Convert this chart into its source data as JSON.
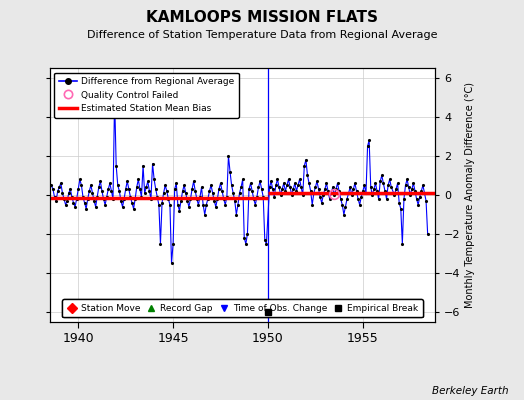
{
  "title": "KAMLOOPS MISSION FLATS",
  "subtitle": "Difference of Station Temperature Data from Regional Average",
  "ylabel": "Monthly Temperature Anomaly Difference (°C)",
  "ylim": [
    -6.5,
    6.5
  ],
  "xlim": [
    1938.5,
    1958.8
  ],
  "background_color": "#e8e8e8",
  "plot_bg_color": "#ffffff",
  "grid_color": "#cccccc",
  "bias_line_before_1950": -0.15,
  "bias_line_after_1950": 0.1,
  "vertical_line_x": 1950.0,
  "empirical_break_x": 1950.0,
  "empirical_break_y": -6.0,
  "qc_failed_x": 1953.5,
  "qc_failed_y": 0.05,
  "time_series": [
    [
      1938.583,
      0.5
    ],
    [
      1938.667,
      0.3
    ],
    [
      1938.75,
      -0.1
    ],
    [
      1938.833,
      -0.3
    ],
    [
      1938.917,
      0.2
    ],
    [
      1939.0,
      0.4
    ],
    [
      1939.083,
      0.6
    ],
    [
      1939.167,
      0.1
    ],
    [
      1939.25,
      -0.2
    ],
    [
      1939.333,
      -0.5
    ],
    [
      1939.417,
      -0.3
    ],
    [
      1939.5,
      0.1
    ],
    [
      1939.583,
      0.3
    ],
    [
      1939.667,
      -0.1
    ],
    [
      1939.75,
      -0.4
    ],
    [
      1939.833,
      -0.6
    ],
    [
      1939.917,
      -0.2
    ],
    [
      1940.0,
      0.3
    ],
    [
      1940.083,
      0.8
    ],
    [
      1940.167,
      0.5
    ],
    [
      1940.25,
      -0.1
    ],
    [
      1940.333,
      -0.4
    ],
    [
      1940.417,
      -0.7
    ],
    [
      1940.5,
      -0.2
    ],
    [
      1940.583,
      0.2
    ],
    [
      1940.667,
      0.5
    ],
    [
      1940.75,
      0.1
    ],
    [
      1940.833,
      -0.3
    ],
    [
      1940.917,
      -0.6
    ],
    [
      1941.0,
      -0.1
    ],
    [
      1941.083,
      0.4
    ],
    [
      1941.167,
      0.7
    ],
    [
      1941.25,
      0.2
    ],
    [
      1941.333,
      -0.2
    ],
    [
      1941.417,
      -0.5
    ],
    [
      1941.5,
      -0.1
    ],
    [
      1941.583,
      0.3
    ],
    [
      1941.667,
      0.6
    ],
    [
      1941.75,
      0.2
    ],
    [
      1941.833,
      -0.2
    ],
    [
      1941.917,
      5.0
    ],
    [
      1942.0,
      1.5
    ],
    [
      1942.083,
      0.5
    ],
    [
      1942.167,
      0.2
    ],
    [
      1942.25,
      -0.3
    ],
    [
      1942.333,
      -0.6
    ],
    [
      1942.417,
      -0.2
    ],
    [
      1942.5,
      0.3
    ],
    [
      1942.583,
      0.7
    ],
    [
      1942.667,
      0.3
    ],
    [
      1942.75,
      -0.1
    ],
    [
      1942.833,
      -0.4
    ],
    [
      1942.917,
      -0.7
    ],
    [
      1943.0,
      -0.2
    ],
    [
      1943.083,
      0.4
    ],
    [
      1943.167,
      0.8
    ],
    [
      1943.25,
      0.3
    ],
    [
      1943.333,
      -0.1
    ],
    [
      1943.417,
      1.5
    ],
    [
      1943.5,
      0.1
    ],
    [
      1943.583,
      0.4
    ],
    [
      1943.667,
      0.7
    ],
    [
      1943.75,
      0.2
    ],
    [
      1943.833,
      -0.2
    ],
    [
      1943.917,
      1.6
    ],
    [
      1944.0,
      0.8
    ],
    [
      1944.083,
      0.3
    ],
    [
      1944.167,
      -0.1
    ],
    [
      1944.25,
      -0.5
    ],
    [
      1944.333,
      -2.5
    ],
    [
      1944.417,
      -0.4
    ],
    [
      1944.5,
      0.1
    ],
    [
      1944.583,
      0.5
    ],
    [
      1944.667,
      0.2
    ],
    [
      1944.75,
      -0.2
    ],
    [
      1944.833,
      -0.5
    ],
    [
      1944.917,
      -3.5
    ],
    [
      1945.0,
      -2.5
    ],
    [
      1945.083,
      0.3
    ],
    [
      1945.167,
      0.6
    ],
    [
      1945.25,
      -0.5
    ],
    [
      1945.333,
      -0.8
    ],
    [
      1945.417,
      -0.3
    ],
    [
      1945.5,
      0.2
    ],
    [
      1945.583,
      0.5
    ],
    [
      1945.667,
      0.1
    ],
    [
      1945.75,
      -0.3
    ],
    [
      1945.833,
      -0.6
    ],
    [
      1945.917,
      -0.2
    ],
    [
      1946.0,
      0.3
    ],
    [
      1946.083,
      0.7
    ],
    [
      1946.167,
      0.2
    ],
    [
      1946.25,
      -0.2
    ],
    [
      1946.333,
      -0.5
    ],
    [
      1946.417,
      -0.1
    ],
    [
      1946.5,
      0.4
    ],
    [
      1946.583,
      -0.5
    ],
    [
      1946.667,
      -1.0
    ],
    [
      1946.75,
      -0.5
    ],
    [
      1946.833,
      -0.2
    ],
    [
      1946.917,
      0.2
    ],
    [
      1947.0,
      0.5
    ],
    [
      1947.083,
      0.1
    ],
    [
      1947.167,
      -0.3
    ],
    [
      1947.25,
      -0.6
    ],
    [
      1947.333,
      -0.2
    ],
    [
      1947.417,
      0.3
    ],
    [
      1947.5,
      0.6
    ],
    [
      1947.583,
      0.2
    ],
    [
      1947.667,
      -0.2
    ],
    [
      1947.75,
      -0.5
    ],
    [
      1947.833,
      -0.1
    ],
    [
      1947.917,
      2.0
    ],
    [
      1948.0,
      1.2
    ],
    [
      1948.083,
      0.5
    ],
    [
      1948.167,
      0.1
    ],
    [
      1948.25,
      -0.3
    ],
    [
      1948.333,
      -1.0
    ],
    [
      1948.417,
      -0.5
    ],
    [
      1948.5,
      0.1
    ],
    [
      1948.583,
      0.4
    ],
    [
      1948.667,
      0.8
    ],
    [
      1948.75,
      -2.2
    ],
    [
      1948.833,
      -2.5
    ],
    [
      1948.917,
      -2.0
    ],
    [
      1949.0,
      0.3
    ],
    [
      1949.083,
      0.6
    ],
    [
      1949.167,
      0.2
    ],
    [
      1949.25,
      -0.2
    ],
    [
      1949.333,
      -0.5
    ],
    [
      1949.417,
      -0.1
    ],
    [
      1949.5,
      0.4
    ],
    [
      1949.583,
      0.7
    ],
    [
      1949.667,
      0.3
    ],
    [
      1949.75,
      -0.1
    ],
    [
      1949.833,
      -2.3
    ],
    [
      1949.917,
      -2.5
    ],
    [
      1950.083,
      0.4
    ],
    [
      1950.167,
      0.7
    ],
    [
      1950.25,
      0.3
    ],
    [
      1950.333,
      -0.1
    ],
    [
      1950.417,
      0.5
    ],
    [
      1950.5,
      0.8
    ],
    [
      1950.583,
      0.4
    ],
    [
      1950.667,
      0.0
    ],
    [
      1950.75,
      0.3
    ],
    [
      1950.833,
      0.6
    ],
    [
      1950.917,
      0.2
    ],
    [
      1951.0,
      0.5
    ],
    [
      1951.083,
      0.8
    ],
    [
      1951.167,
      0.4
    ],
    [
      1951.25,
      0.0
    ],
    [
      1951.333,
      0.3
    ],
    [
      1951.417,
      0.6
    ],
    [
      1951.5,
      0.2
    ],
    [
      1951.583,
      0.5
    ],
    [
      1951.667,
      0.8
    ],
    [
      1951.75,
      0.4
    ],
    [
      1951.833,
      0.0
    ],
    [
      1951.917,
      1.5
    ],
    [
      1952.0,
      1.8
    ],
    [
      1952.083,
      1.0
    ],
    [
      1952.167,
      0.6
    ],
    [
      1952.25,
      0.2
    ],
    [
      1952.333,
      -0.5
    ],
    [
      1952.417,
      0.1
    ],
    [
      1952.5,
      0.4
    ],
    [
      1952.583,
      0.7
    ],
    [
      1952.667,
      0.3
    ],
    [
      1952.75,
      -0.1
    ],
    [
      1952.833,
      -0.4
    ],
    [
      1952.917,
      0.0
    ],
    [
      1953.0,
      0.3
    ],
    [
      1953.083,
      0.6
    ],
    [
      1953.167,
      0.2
    ],
    [
      1953.25,
      -0.2
    ],
    [
      1953.333,
      0.1
    ],
    [
      1953.417,
      0.4
    ],
    [
      1953.5,
      0.0
    ],
    [
      1953.583,
      0.3
    ],
    [
      1953.667,
      0.6
    ],
    [
      1953.75,
      0.2
    ],
    [
      1953.833,
      -0.2
    ],
    [
      1953.917,
      -0.5
    ],
    [
      1954.0,
      -1.0
    ],
    [
      1954.083,
      -0.6
    ],
    [
      1954.167,
      -0.2
    ],
    [
      1954.25,
      0.1
    ],
    [
      1954.333,
      0.4
    ],
    [
      1954.417,
      0.0
    ],
    [
      1954.5,
      0.3
    ],
    [
      1954.583,
      0.6
    ],
    [
      1954.667,
      0.2
    ],
    [
      1954.75,
      -0.2
    ],
    [
      1954.833,
      -0.5
    ],
    [
      1954.917,
      -0.1
    ],
    [
      1955.0,
      0.2
    ],
    [
      1955.083,
      0.5
    ],
    [
      1955.167,
      0.1
    ],
    [
      1955.25,
      2.5
    ],
    [
      1955.333,
      2.8
    ],
    [
      1955.417,
      0.4
    ],
    [
      1955.5,
      0.0
    ],
    [
      1955.583,
      0.3
    ],
    [
      1955.667,
      0.6
    ],
    [
      1955.75,
      0.2
    ],
    [
      1955.833,
      -0.2
    ],
    [
      1955.917,
      0.7
    ],
    [
      1956.0,
      1.0
    ],
    [
      1956.083,
      0.6
    ],
    [
      1956.167,
      0.2
    ],
    [
      1956.25,
      -0.2
    ],
    [
      1956.333,
      0.5
    ],
    [
      1956.417,
      0.8
    ],
    [
      1956.5,
      0.4
    ],
    [
      1956.667,
      0.0
    ],
    [
      1956.75,
      0.3
    ],
    [
      1956.833,
      0.6
    ],
    [
      1956.917,
      -0.4
    ],
    [
      1957.0,
      -0.7
    ],
    [
      1957.083,
      -2.5
    ],
    [
      1957.167,
      -0.2
    ],
    [
      1957.25,
      0.5
    ],
    [
      1957.333,
      0.8
    ],
    [
      1957.417,
      0.4
    ],
    [
      1957.5,
      0.0
    ],
    [
      1957.583,
      0.3
    ],
    [
      1957.667,
      0.6
    ],
    [
      1957.75,
      0.2
    ],
    [
      1957.833,
      -0.2
    ],
    [
      1957.917,
      -0.5
    ],
    [
      1958.0,
      -0.1
    ],
    [
      1958.083,
      0.2
    ],
    [
      1958.167,
      0.5
    ],
    [
      1958.25,
      0.1
    ],
    [
      1958.333,
      -0.3
    ],
    [
      1958.417,
      -2.0
    ]
  ]
}
